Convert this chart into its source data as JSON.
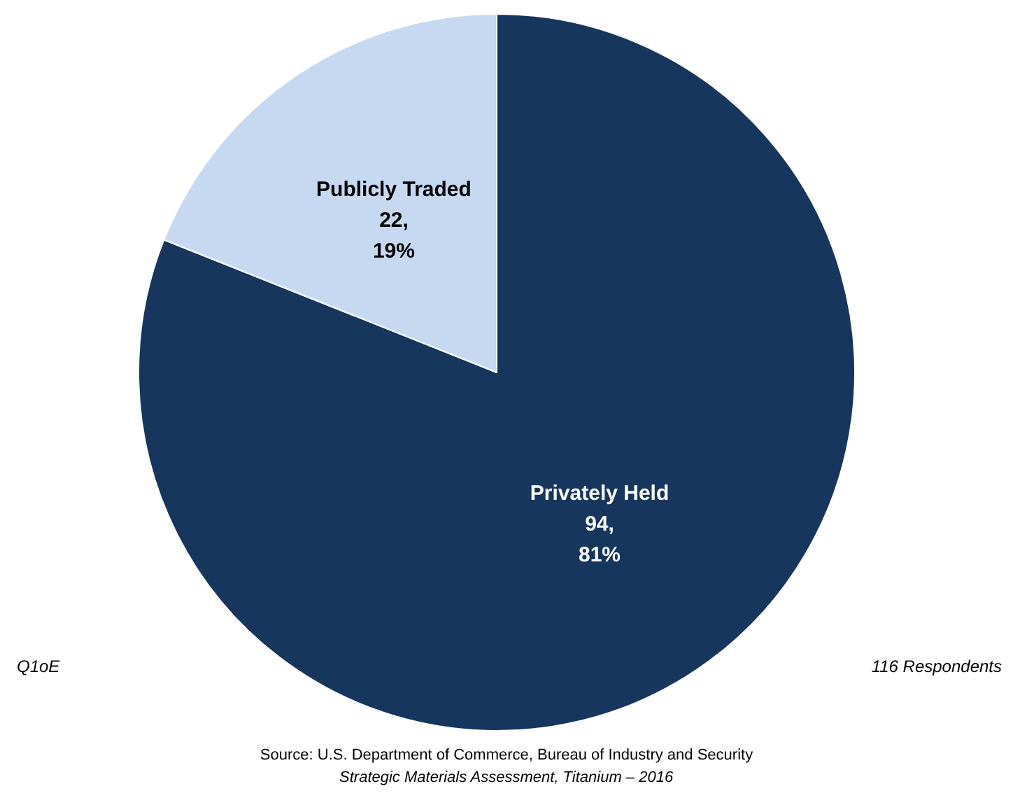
{
  "chart_data": {
    "type": "pie",
    "categories": [
      "Privately Held",
      "Publicly Traded"
    ],
    "values": [
      94,
      22
    ],
    "colors": [
      "#17365d",
      "#c6d9f1"
    ],
    "value_labels": [
      "94,\n81%",
      "22,\n19%"
    ],
    "legend": false,
    "annotations": [
      "Q1oE",
      "116 Respondents",
      "Source: U.S. Department of Commerce, Bureau of Industry and Security",
      "Strategic Materials Assessment, Titanium – 2016"
    ]
  }
}
